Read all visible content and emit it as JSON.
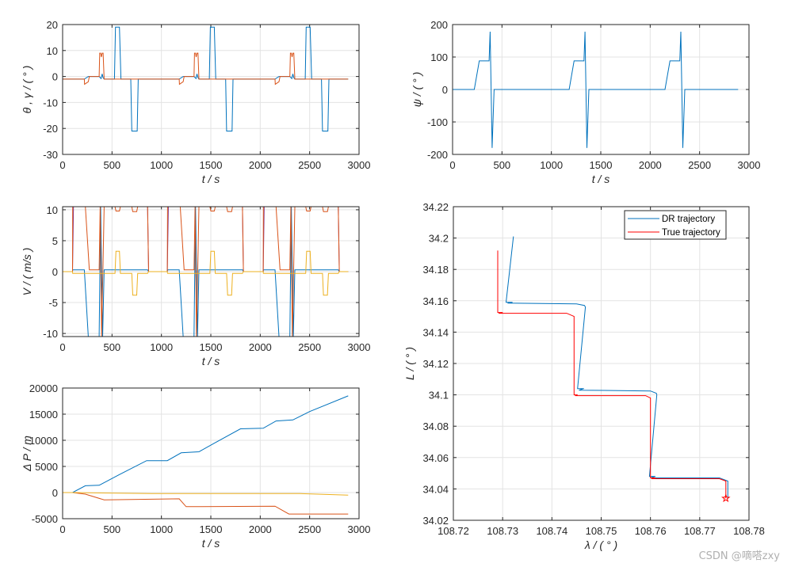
{
  "watermark": "CSDN @嘀嗒zxy",
  "colors": {
    "blue": "#0072BD",
    "orange": "#D95319",
    "yellow": "#EDB120",
    "purple": "#7E2F8E",
    "red": "#FF0000",
    "grid": "#DFDFDF"
  },
  "chart_data": [
    {
      "type": "line",
      "xlabel": "t  / s",
      "ylabel": "θ , γ / ( ° )",
      "xlim": [
        0,
        3000
      ],
      "ylim": [
        -30,
        20
      ],
      "xticks": [
        0,
        500,
        1000,
        1500,
        2000,
        2500,
        3000
      ],
      "yticks": [
        -30,
        -20,
        -10,
        0,
        10,
        20
      ],
      "grid": true,
      "series": [
        {
          "color": "#0072BD",
          "x": [
            0,
            220,
            260,
            370,
            390,
            400,
            410,
            420,
            525,
            535,
            575,
            590,
            690,
            700,
            755,
            765,
            1180,
            1220,
            1330,
            1350,
            1360,
            1370,
            1380,
            1485,
            1495,
            1535,
            1550,
            1650,
            1660,
            1715,
            1725,
            2150,
            2190,
            2300,
            2320,
            2330,
            2340,
            2350,
            2455,
            2465,
            2505,
            2520,
            2620,
            2630,
            2685,
            2695,
            2890
          ],
          "y": [
            -1,
            -1,
            0,
            0,
            -0.8,
            1,
            -0.5,
            -1,
            -1,
            19,
            19,
            -1,
            -1,
            -21,
            -21,
            -1,
            -1,
            0,
            0,
            -0.8,
            1,
            -0.5,
            -1,
            -1,
            19,
            19,
            -1,
            -1,
            -21,
            -21,
            -1,
            -1,
            0,
            0,
            -0.8,
            1,
            -0.5,
            -1,
            -1,
            19,
            19,
            -1,
            -1,
            -21,
            -21,
            -1,
            -1
          ]
        },
        {
          "color": "#D95319",
          "x": [
            0,
            220,
            222,
            260,
            270,
            370,
            375,
            385,
            392,
            400,
            410,
            420,
            1180,
            1182,
            1220,
            1230,
            1330,
            1335,
            1345,
            1352,
            1360,
            1370,
            1380,
            2150,
            2152,
            2190,
            2200,
            2300,
            2305,
            2315,
            2322,
            2330,
            2340,
            2350,
            2890
          ],
          "y": [
            -1,
            -1,
            -3,
            -2,
            0,
            0,
            9,
            9,
            7.5,
            9,
            9,
            -1,
            -1,
            -3,
            -2,
            0,
            0,
            9,
            9,
            7.5,
            9,
            9,
            -1,
            -1,
            -3,
            -2,
            0,
            0,
            9,
            9,
            7.5,
            9,
            9,
            -1,
            -1
          ]
        }
      ]
    },
    {
      "type": "line",
      "xlabel": "t  / s",
      "ylabel": "ψ / ( ° )",
      "xlim": [
        0,
        3000
      ],
      "ylim": [
        -200,
        200
      ],
      "xticks": [
        0,
        500,
        1000,
        1500,
        2000,
        2500,
        3000
      ],
      "yticks": [
        -200,
        -100,
        0,
        100,
        200
      ],
      "grid": true,
      "series": [
        {
          "color": "#0072BD",
          "x": [
            0,
            220,
            270,
            370,
            380,
            400,
            420,
            1180,
            1230,
            1330,
            1340,
            1360,
            1380,
            2150,
            2200,
            2300,
            2310,
            2330,
            2350,
            2890
          ],
          "y": [
            0,
            0,
            88,
            88,
            178,
            -180,
            0,
            0,
            88,
            88,
            178,
            -180,
            0,
            0,
            88,
            88,
            178,
            -180,
            0,
            0
          ]
        }
      ]
    },
    {
      "type": "line",
      "xlabel": "t  / s",
      "ylabel": "V / ( m/s )",
      "xlim": [
        0,
        3000
      ],
      "ylim": [
        -10.5,
        10.5
      ],
      "xticks": [
        0,
        500,
        1000,
        1500,
        2000,
        2500,
        3000
      ],
      "yticks": [
        -10,
        -5,
        0,
        5,
        10
      ],
      "grid": true,
      "series": [
        {
          "color": "#7E2F8E",
          "x": [
            0,
            100,
            110,
            860,
            870,
            1060,
            1070,
            1820,
            1830,
            2030,
            2040,
            2790,
            2800,
            2890
          ],
          "y": [
            0,
            0,
            10.5,
            10.5,
            0,
            0,
            10.5,
            10.5,
            0,
            0,
            10.5,
            10.5,
            0,
            0
          ]
        },
        {
          "color": "#0072BD",
          "x": [
            0,
            100,
            102,
            220,
            260,
            370,
            385,
            405,
            420,
            860,
            870,
            1060,
            1062,
            1180,
            1220,
            1330,
            1345,
            1365,
            1380,
            1820,
            1830,
            2030,
            2032,
            2150,
            2190,
            2300,
            2315,
            2335,
            2350,
            2790,
            2800,
            2890
          ],
          "y": [
            0,
            0,
            0.3,
            0.3,
            -10.5,
            -10.5,
            10.5,
            -10.5,
            0.3,
            0.3,
            0,
            0,
            0.3,
            0.3,
            -10.5,
            -10.5,
            10.5,
            -10.5,
            0.3,
            0.3,
            0,
            0,
            0.3,
            0.3,
            -10.5,
            -10.5,
            10.5,
            -10.5,
            0.3,
            0.3,
            0,
            0
          ]
        },
        {
          "color": "#D95319",
          "x": [
            0,
            100,
            102,
            230,
            270,
            370,
            380,
            395,
            420,
            530,
            540,
            575,
            585,
            700,
            710,
            750,
            760,
            860,
            870,
            1060,
            1062,
            1190,
            1230,
            1330,
            1340,
            1355,
            1380,
            1490,
            1500,
            1535,
            1545,
            1660,
            1670,
            1710,
            1720,
            1820,
            1830,
            2030,
            2032,
            2160,
            2200,
            2300,
            2310,
            2325,
            2350,
            2460,
            2470,
            2505,
            2515,
            2630,
            2640,
            2680,
            2690,
            2790,
            2800,
            2890
          ],
          "y": [
            0,
            0,
            10.5,
            10.5,
            0.3,
            0.3,
            10.5,
            -10.5,
            10.5,
            10.5,
            9.8,
            9.8,
            10.5,
            10.5,
            9.7,
            9.7,
            10.5,
            10.5,
            0,
            0,
            10.5,
            10.5,
            0.3,
            0.3,
            10.5,
            -10.5,
            10.5,
            10.5,
            9.8,
            9.8,
            10.5,
            10.5,
            9.7,
            9.7,
            10.5,
            10.5,
            0,
            0,
            10.5,
            10.5,
            0.3,
            0.3,
            10.5,
            -10.5,
            10.5,
            10.5,
            9.8,
            9.8,
            10.5,
            10.5,
            9.7,
            9.7,
            10.5,
            10.5,
            0,
            0
          ]
        },
        {
          "color": "#EDB120",
          "x": [
            0,
            100,
            102,
            530,
            540,
            575,
            585,
            700,
            710,
            750,
            760,
            860,
            870,
            1060,
            1062,
            1490,
            1500,
            1535,
            1545,
            1660,
            1670,
            1710,
            1720,
            1820,
            1830,
            2030,
            2032,
            2460,
            2470,
            2505,
            2515,
            2630,
            2640,
            2680,
            2690,
            2790,
            2800,
            2890
          ],
          "y": [
            0,
            0,
            -0.3,
            -0.3,
            3.3,
            3.3,
            -0.3,
            -0.3,
            -3.8,
            -3.8,
            -0.3,
            -0.3,
            0,
            0,
            -0.3,
            -0.3,
            3.3,
            3.3,
            -0.3,
            -0.3,
            -3.8,
            -3.8,
            -0.3,
            -0.3,
            0,
            0,
            -0.3,
            -0.3,
            3.3,
            3.3,
            -0.3,
            -0.3,
            -3.8,
            -3.8,
            -0.3,
            -0.3,
            0,
            0
          ]
        }
      ]
    },
    {
      "type": "line",
      "xlabel": "t  / s",
      "ylabel": "Δ P / m",
      "xlim": [
        0,
        3000
      ],
      "ylim": [
        -5000,
        20000
      ],
      "xticks": [
        0,
        500,
        1000,
        1500,
        2000,
        2500,
        3000
      ],
      "yticks": [
        -5000,
        0,
        5000,
        10000,
        15000,
        20000
      ],
      "grid": true,
      "series": [
        {
          "color": "#0072BD",
          "x": [
            0,
            100,
            230,
            370,
            580,
            850,
            1060,
            1200,
            1380,
            1540,
            1800,
            2030,
            2160,
            2330,
            2500,
            2890
          ],
          "y": [
            0,
            0,
            1300,
            1400,
            3500,
            6100,
            6100,
            7600,
            7800,
            9500,
            12200,
            12300,
            13700,
            13900,
            15500,
            18500
          ]
        },
        {
          "color": "#D95319",
          "x": [
            0,
            100,
            230,
            420,
            1180,
            1250,
            2150,
            2290,
            2890
          ],
          "y": [
            0,
            0,
            -300,
            -1400,
            -1200,
            -2700,
            -2600,
            -4100,
            -4100
          ]
        },
        {
          "color": "#EDB120",
          "x": [
            0,
            100,
            900,
            1800,
            2400,
            2890
          ],
          "y": [
            0,
            0,
            -200,
            -200,
            -200,
            -500
          ]
        }
      ]
    },
    {
      "type": "line",
      "xlabel": "λ / ( ° )",
      "ylabel": "L / ( ° )",
      "xlim": [
        108.72,
        108.78
      ],
      "ylim": [
        34.02,
        34.22
      ],
      "xticks": [
        108.72,
        108.73,
        108.74,
        108.75,
        108.76,
        108.77,
        108.78
      ],
      "yticks": [
        34.02,
        34.04,
        34.06,
        34.08,
        34.1,
        34.12,
        34.14,
        34.16,
        34.18,
        34.2,
        34.22
      ],
      "grid": true,
      "legend": "top-right",
      "series": [
        {
          "name": "DR trajectory",
          "color": "#0072BD",
          "x": [
            108.7322,
            108.7307,
            108.732,
            108.731,
            108.745,
            108.7466,
            108.7468,
            108.7452,
            108.7465,
            108.7455,
            108.76,
            108.7612,
            108.7613,
            108.7598,
            108.761,
            108.76,
            108.774,
            108.7757,
            108.7757
          ],
          "y": [
            34.201,
            34.159,
            34.159,
            34.1585,
            34.158,
            34.157,
            34.156,
            34.104,
            34.104,
            34.103,
            34.1025,
            34.101,
            34.1,
            34.048,
            34.048,
            34.047,
            34.047,
            34.045,
            34.034
          ]
        },
        {
          "name": "True trajectory",
          "color": "#FF0000",
          "marker_end": "star",
          "x": [
            108.729,
            108.729,
            108.73,
            108.7292,
            108.743,
            108.7445,
            108.7445,
            108.7452,
            108.7447,
            108.759,
            108.76,
            108.76,
            108.761,
            108.7602,
            108.774,
            108.7753,
            108.7753
          ],
          "y": [
            34.192,
            34.1525,
            34.1525,
            34.152,
            34.152,
            34.15,
            34.1,
            34.1,
            34.0995,
            34.0995,
            34.098,
            34.047,
            34.047,
            34.0465,
            34.0465,
            34.045,
            34.034
          ]
        }
      ]
    }
  ]
}
